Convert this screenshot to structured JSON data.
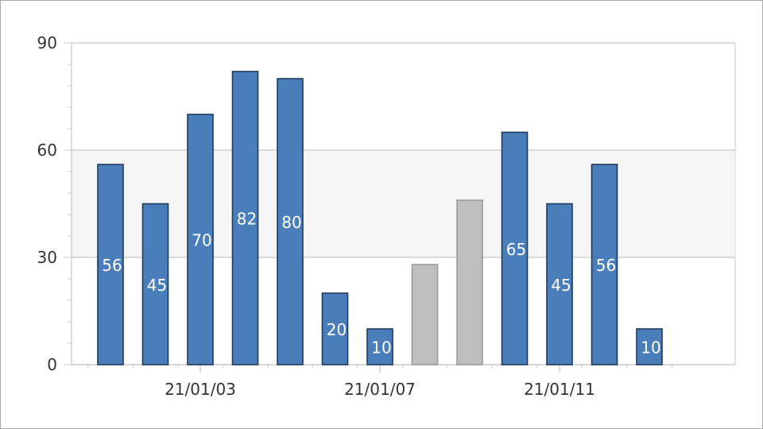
{
  "chart_data": {
    "type": "bar",
    "title": "",
    "xlabel": "",
    "ylabel": "",
    "ylim": [
      0,
      90
    ],
    "yticks": [
      0,
      30,
      60,
      90
    ],
    "x_tick_labels": [
      {
        "label": "21/01/03",
        "index": 2
      },
      {
        "label": "21/01/07",
        "index": 6
      },
      {
        "label": "21/01/11",
        "index": 10
      }
    ],
    "band": {
      "from": 30,
      "to": 60
    },
    "grid": true,
    "values": [
      56,
      45,
      70,
      82,
      80,
      20,
      10,
      28,
      46,
      65,
      45,
      56,
      10
    ],
    "labeled": [
      true,
      true,
      true,
      true,
      true,
      true,
      true,
      false,
      false,
      true,
      true,
      true,
      true
    ],
    "colors": {
      "bar": "#4a7ebb",
      "bar_border": "#1f3a5c",
      "inactive_bar": "#bebebe",
      "inactive_border": "#9a9a9a",
      "band": "#f5f5f5",
      "axis": "#c8c8c8"
    }
  }
}
